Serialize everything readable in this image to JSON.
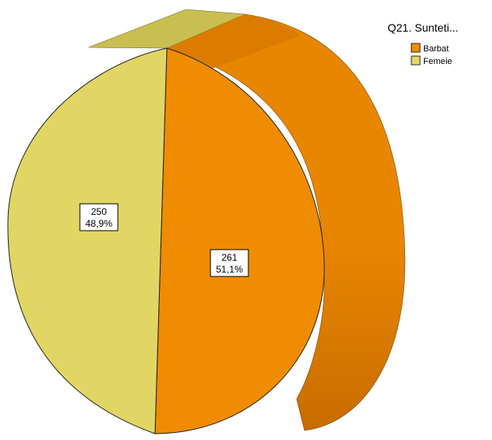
{
  "chart_data": {
    "type": "pie",
    "title": "",
    "legend": {
      "title": "Q21. Sunteti...",
      "placement": "top-right",
      "entries": [
        {
          "name": "Barbat",
          "color": "#f08c00"
        },
        {
          "name": "Femeie",
          "color": "#e1d664"
        }
      ]
    },
    "slices": [
      {
        "name": "Barbat",
        "value": 261,
        "percent_label": "51,1%",
        "color": "#f08c00"
      },
      {
        "name": "Femeie",
        "value": 250,
        "percent_label": "48,9%",
        "color": "#e1d664"
      }
    ],
    "style": "3d-pie"
  }
}
